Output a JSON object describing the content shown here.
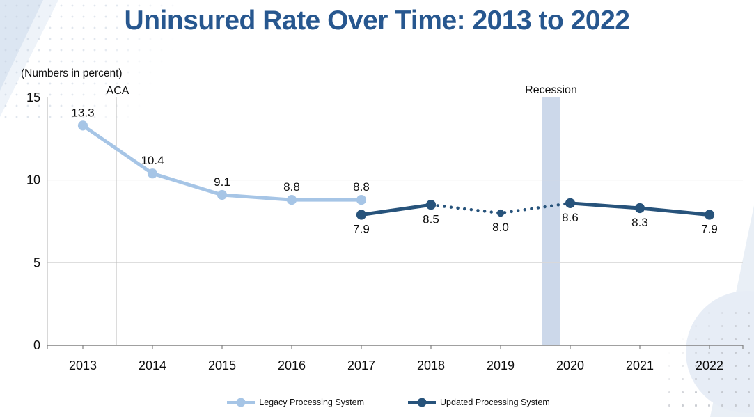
{
  "chart_data": {
    "type": "line",
    "title": "Uninsured Rate Over Time: 2013 to 2022",
    "subtitle": "(Numbers in percent)",
    "x": [
      2013,
      2014,
      2015,
      2016,
      2017,
      2018,
      2019,
      2020,
      2021,
      2022
    ],
    "ylim": [
      0,
      15
    ],
    "yticks": [
      0,
      5,
      10,
      15
    ],
    "gridlines": [
      5,
      10
    ],
    "legend_position": "bottom",
    "series": [
      {
        "name": "Legacy Processing System",
        "color": "#A6C5E6",
        "label_position": "above",
        "points": [
          {
            "x": 2013,
            "y": 13.3,
            "label": "13.3"
          },
          {
            "x": 2014,
            "y": 10.4,
            "label": "10.4"
          },
          {
            "x": 2015,
            "y": 9.1,
            "label": "9.1"
          },
          {
            "x": 2016,
            "y": 8.8,
            "label": "8.8"
          },
          {
            "x": 2017,
            "y": 8.8,
            "label": "8.8"
          }
        ]
      },
      {
        "name": "Updated Processing System",
        "color": "#27537B",
        "label_position": "below",
        "points": [
          {
            "x": 2017,
            "y": 7.9,
            "label": "7.9"
          },
          {
            "x": 2018,
            "y": 8.5,
            "label": "8.5"
          },
          {
            "x": 2019,
            "y": 8.0,
            "label": "8.0",
            "marker_size": "small"
          },
          {
            "x": 2020,
            "y": 8.6,
            "label": "8.6"
          },
          {
            "x": 2021,
            "y": 8.3,
            "label": "8.3"
          },
          {
            "x": 2022,
            "y": 7.9,
            "label": "7.9"
          }
        ],
        "segments": [
          {
            "from": 2017,
            "to": 2018,
            "style": "solid"
          },
          {
            "from": 2018,
            "to": 2020,
            "style": "dotted"
          },
          {
            "from": 2020,
            "to": 2022,
            "style": "solid"
          }
        ]
      }
    ],
    "annotations": {
      "aca": {
        "label": "ACA",
        "x": 2013.48
      },
      "recession": {
        "label": "Recession",
        "x_start": 2019.59,
        "x_end": 2019.86,
        "color": "#CCD8EA"
      }
    },
    "colors": {
      "title": "#27578F",
      "gridline": "#D9D9D9",
      "axis": "#808080",
      "aca_line": "#B8B8B8",
      "text": "#0D0D0D"
    }
  }
}
